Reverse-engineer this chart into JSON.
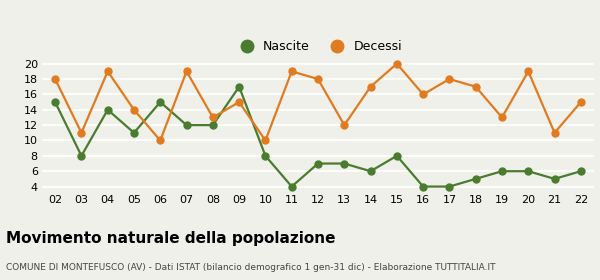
{
  "years": [
    "02",
    "03",
    "04",
    "05",
    "06",
    "07",
    "08",
    "09",
    "10",
    "11",
    "12",
    "13",
    "14",
    "15",
    "16",
    "17",
    "18",
    "19",
    "20",
    "21",
    "22"
  ],
  "nascite": [
    15,
    8,
    14,
    11,
    15,
    12,
    12,
    17,
    8,
    4,
    7,
    7,
    6,
    8,
    4,
    4,
    5,
    6,
    6,
    5,
    6
  ],
  "decessi": [
    18,
    11,
    19,
    14,
    10,
    19,
    13,
    15,
    10,
    19,
    18,
    12,
    17,
    20,
    16,
    18,
    17,
    13,
    19,
    11,
    15
  ],
  "nascite_color": "#4a7c2f",
  "decessi_color": "#e07b20",
  "bg_color": "#f0f0eb",
  "grid_color": "#ffffff",
  "ylim": [
    3.5,
    21
  ],
  "yticks": [
    4,
    6,
    8,
    10,
    12,
    14,
    16,
    18,
    20
  ],
  "title": "Movimento naturale della popolazione",
  "subtitle": "COMUNE DI MONTEFUSCO (AV) - Dati ISTAT (bilancio demografico 1 gen-31 dic) - Elaborazione TUTTITALIA.IT",
  "legend_nascite": "Nascite",
  "legend_decessi": "Decessi",
  "marker_size": 5,
  "line_width": 1.6,
  "title_fontsize": 11,
  "subtitle_fontsize": 6.5,
  "tick_fontsize": 8
}
